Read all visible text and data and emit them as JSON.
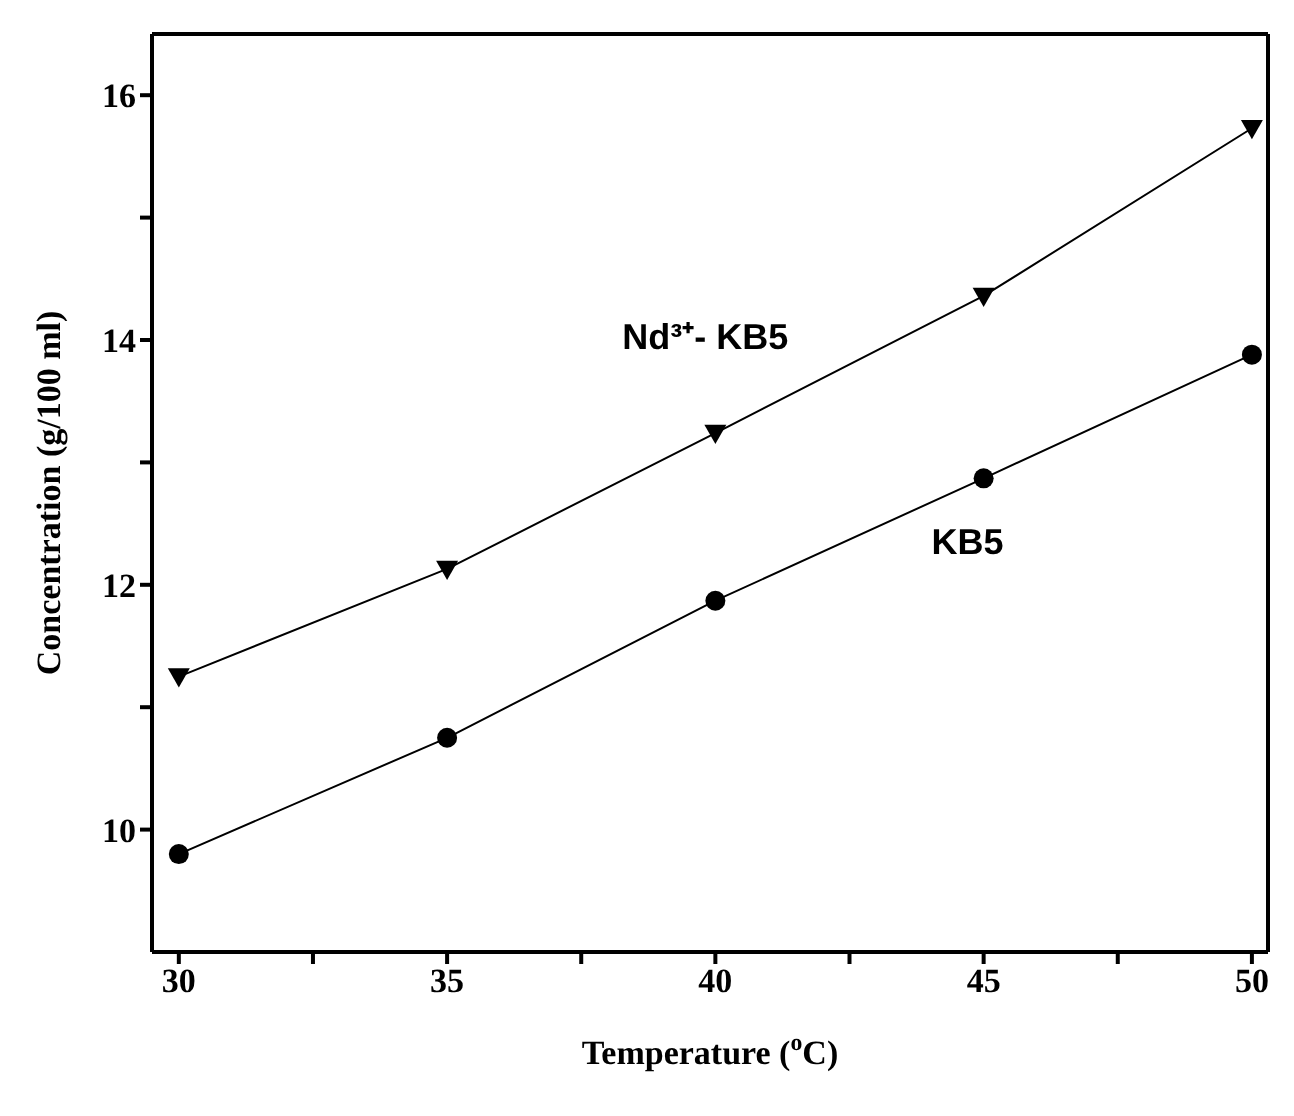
{
  "chart_data": {
    "type": "line",
    "xlabel": "Temperature ($^{o}$C)",
    "ylabel": "Concentration (g/100 ml)",
    "x": [
      30,
      35,
      40,
      45,
      50
    ],
    "series": [
      {
        "name": "Nd³⁺- KB5",
        "color": "#000000",
        "marker": "triangle",
        "values": [
          11.25,
          12.13,
          13.24,
          14.36,
          15.73
        ]
      },
      {
        "name": "KB5",
        "color": "#000000",
        "marker": "circle",
        "values": [
          9.8,
          10.75,
          11.87,
          12.87,
          13.88
        ]
      }
    ],
    "xlim": [
      29.5,
      50.3
    ],
    "ylim": [
      9,
      16.5
    ],
    "xticks": [
      30,
      {
        "value": 32.5,
        "label": null
      },
      35,
      {
        "value": 37.5,
        "label": null
      },
      40,
      {
        "value": 42.5,
        "label": null
      },
      45,
      {
        "value": 47.5,
        "label": null
      },
      50
    ],
    "yticks": [
      10,
      {
        "value": 11,
        "label": null
      },
      12,
      {
        "value": 13,
        "label": null
      },
      14,
      {
        "value": 15,
        "label": null
      },
      16
    ],
    "grid": false,
    "legend": false,
    "line_style": "solid"
  }
}
